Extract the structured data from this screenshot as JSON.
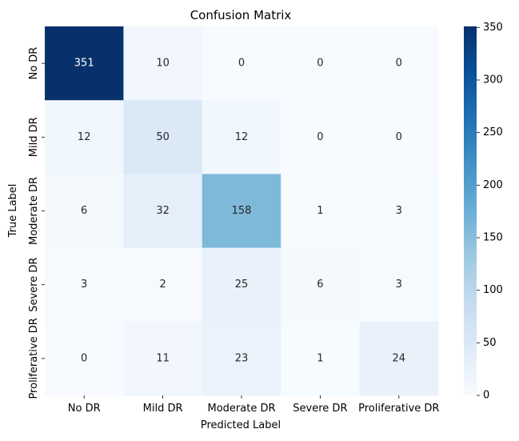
{
  "chart_data": {
    "type": "heatmap",
    "title": "Confusion Matrix",
    "xlabel": "Predicted Label",
    "ylabel": "True Label",
    "x_categories": [
      "No DR",
      "Mild DR",
      "Moderate DR",
      "Severe DR",
      "Proliferative DR"
    ],
    "y_categories": [
      "No DR",
      "Mild DR",
      "Moderate DR",
      "Severe DR",
      "Proliferative DR"
    ],
    "values": [
      [
        351,
        10,
        0,
        0,
        0
      ],
      [
        12,
        50,
        12,
        0,
        0
      ],
      [
        6,
        32,
        158,
        1,
        3
      ],
      [
        3,
        2,
        25,
        6,
        3
      ],
      [
        0,
        11,
        23,
        1,
        24
      ]
    ],
    "colormap": "Blues",
    "colorbar": {
      "vmin": 0,
      "vmax": 351,
      "ticks": [
        0,
        50,
        100,
        150,
        200,
        250,
        300,
        350
      ]
    }
  }
}
